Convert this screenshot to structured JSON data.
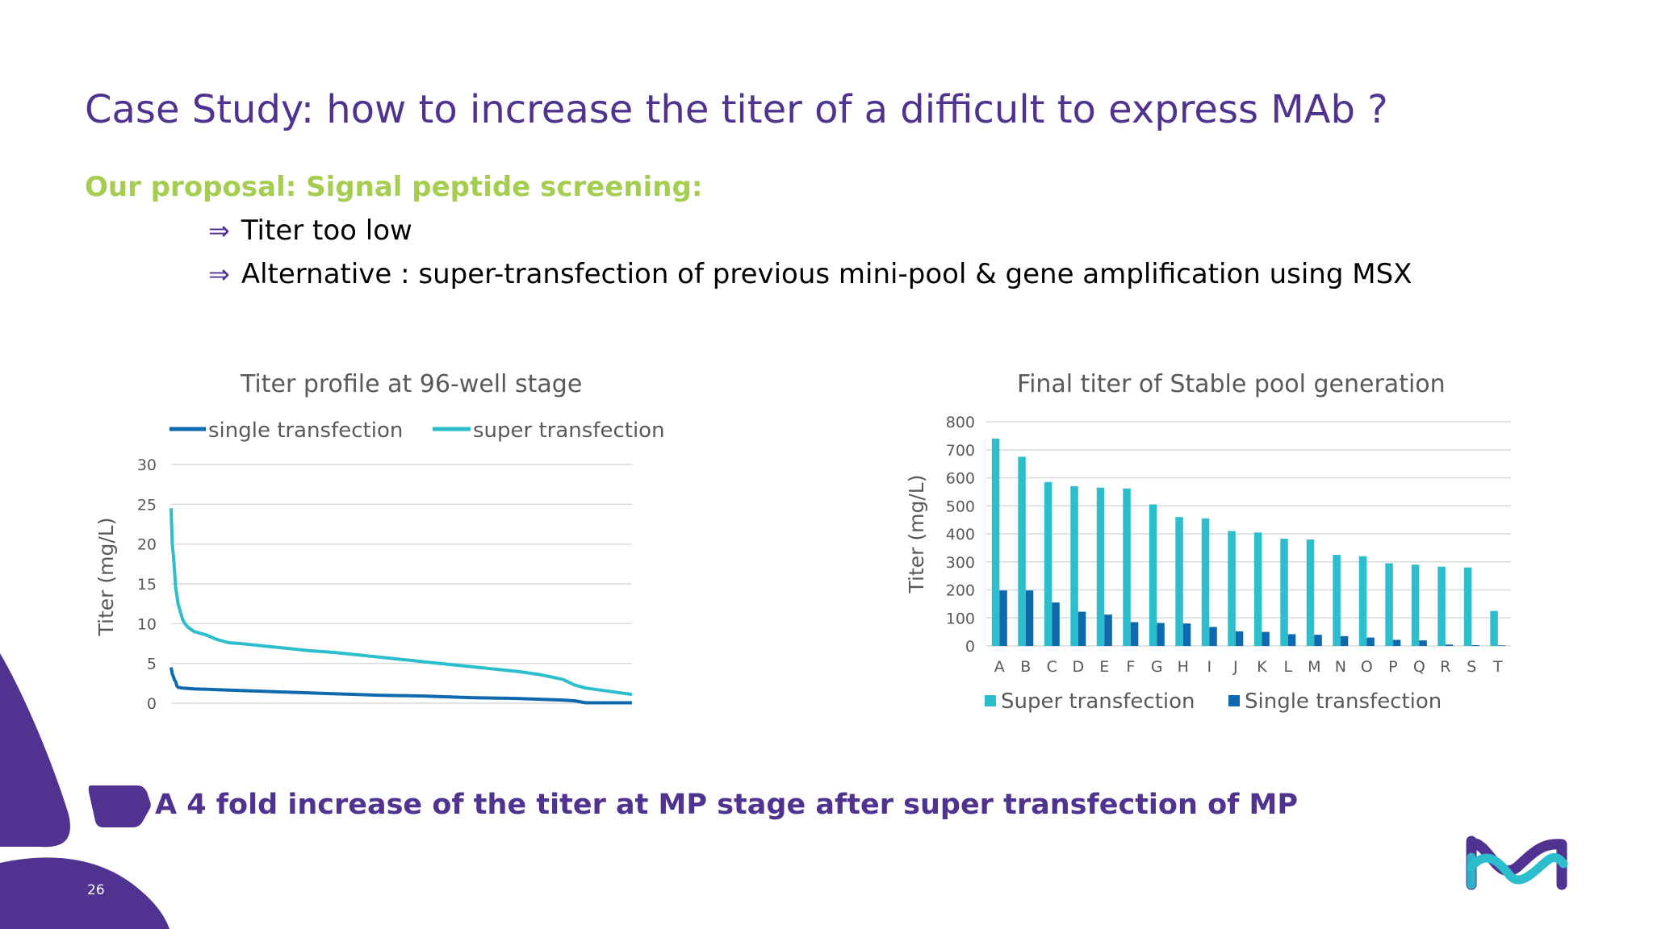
{
  "slide": {
    "title": "Case Study: how to increase the titer of a difficult to express MAb  ?",
    "subtitle": "Our proposal:  Signal peptide screening:",
    "bullets": [
      "Titer too low",
      "Alternative : super-transfection of previous mini-pool & gene amplification using MSX"
    ],
    "bullet_symbol": "⇒",
    "conclusion": "A 4 fold increase of the titer at MP stage after super transfection of MP",
    "page_number": "26"
  },
  "colors": {
    "brand_purple": "#503291",
    "accent_green": "#a5cd50",
    "teal": "#2dbecd",
    "dark_blue": "#0f69af",
    "grid": "#d9d9d9",
    "text_gray": "#595959"
  },
  "chart_data": [
    {
      "type": "line",
      "title": "Titer profile at 96-well stage",
      "ylabel": "Titer (mg/L)",
      "xlabel": "",
      "ylim": [
        0,
        30
      ],
      "yticks": [
        0,
        5,
        10,
        15,
        20,
        25,
        30
      ],
      "grid": true,
      "legend_position": "top",
      "series": [
        {
          "name": "single transfection",
          "color": "#0f69af",
          "x": [
            0,
            1,
            2,
            3,
            4,
            5,
            6,
            10,
            20,
            40,
            60,
            80,
            100,
            120,
            140,
            160,
            180,
            200,
            220,
            240,
            260,
            280,
            300,
            320,
            340,
            350,
            360,
            380,
            400
          ],
          "y": [
            4.5,
            3.7,
            3.3,
            2.9,
            2.7,
            2.2,
            2.0,
            1.9,
            1.8,
            1.7,
            1.6,
            1.5,
            1.4,
            1.3,
            1.2,
            1.1,
            1.0,
            0.95,
            0.9,
            0.8,
            0.7,
            0.65,
            0.6,
            0.5,
            0.4,
            0.3,
            0.05,
            0.05,
            0.05
          ]
        },
        {
          "name": "super transfection",
          "color": "#2dbecd",
          "x": [
            0,
            1,
            2,
            3,
            4,
            6,
            8,
            10,
            12,
            15,
            20,
            25,
            30,
            35,
            40,
            45,
            50,
            60,
            80,
            100,
            120,
            140,
            160,
            180,
            200,
            220,
            240,
            260,
            280,
            300,
            320,
            340,
            350,
            355,
            360,
            370,
            380,
            390,
            400
          ],
          "y": [
            24.5,
            20.0,
            18.5,
            16.5,
            14.5,
            12.5,
            11.5,
            10.5,
            10.0,
            9.5,
            9.0,
            8.8,
            8.6,
            8.3,
            8.0,
            7.8,
            7.6,
            7.5,
            7.2,
            6.9,
            6.6,
            6.4,
            6.1,
            5.8,
            5.5,
            5.2,
            4.9,
            4.6,
            4.3,
            4.0,
            3.6,
            3.0,
            2.3,
            2.1,
            1.9,
            1.7,
            1.5,
            1.3,
            1.1
          ]
        }
      ]
    },
    {
      "type": "bar",
      "title": "Final titer of Stable pool generation",
      "ylabel": "Titer (mg/L)",
      "xlabel": "",
      "ylim": [
        0,
        800
      ],
      "yticks": [
        0,
        100,
        200,
        300,
        400,
        500,
        600,
        700,
        800
      ],
      "grid": true,
      "legend_position": "bottom",
      "categories": [
        "A",
        "B",
        "C",
        "D",
        "E",
        "F",
        "G",
        "H",
        "I",
        "J",
        "K",
        "L",
        "M",
        "N",
        "O",
        "P",
        "Q",
        "R",
        "S",
        "T"
      ],
      "series": [
        {
          "name": "Super transfection",
          "color": "#2dbecd",
          "values": [
            740,
            675,
            585,
            570,
            565,
            562,
            505,
            460,
            455,
            410,
            405,
            383,
            380,
            325,
            320,
            295,
            290,
            283,
            280,
            125
          ]
        },
        {
          "name": "Single transfection",
          "color": "#0f69af",
          "values": [
            198,
            198,
            155,
            122,
            112,
            85,
            82,
            80,
            68,
            52,
            50,
            42,
            40,
            35,
            30,
            22,
            20,
            5,
            3,
            2
          ]
        }
      ]
    }
  ]
}
